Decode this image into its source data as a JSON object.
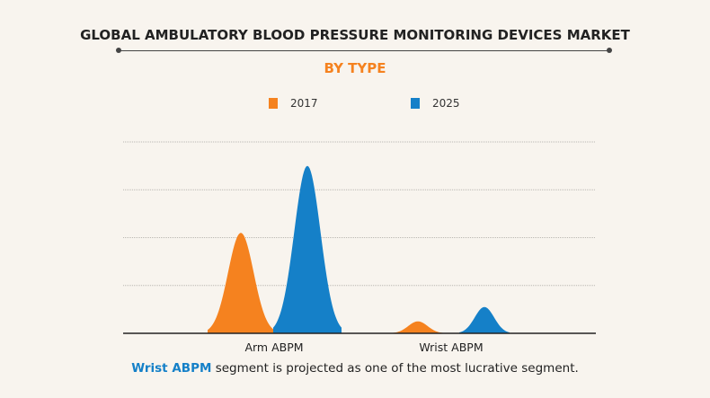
{
  "header": {
    "title": "GLOBAL AMBULATORY BLOOD PRESSURE MONITORING DEVICES MARKET",
    "subtitle": "BY TYPE"
  },
  "colors": {
    "accent_orange": "#f5821f",
    "accent_blue": "#1580c8",
    "background": "#f8f4ee",
    "text": "#222222"
  },
  "legend": {
    "items": [
      {
        "label": "2017",
        "color": "#f5821f"
      },
      {
        "label": "2025",
        "color": "#1580c8"
      }
    ]
  },
  "chart_data": {
    "type": "area",
    "title": "GLOBAL AMBULATORY BLOOD PRESSURE MONITORING DEVICES MARKET",
    "subtitle": "BY TYPE",
    "categories": [
      "Arm ABPM",
      "Wrist ABPM"
    ],
    "series": [
      {
        "name": "2017",
        "values": [
          2.1,
          0.25
        ]
      },
      {
        "name": "2025",
        "values": [
          3.5,
          0.55
        ]
      }
    ],
    "ylim": [
      0,
      4
    ],
    "grid": true,
    "legend_position": "top-center",
    "xlabel": "",
    "ylabel": ""
  },
  "caption": {
    "highlight": "Wrist ABPM",
    "rest": " segment is projected as one of the most lucrative segment."
  }
}
